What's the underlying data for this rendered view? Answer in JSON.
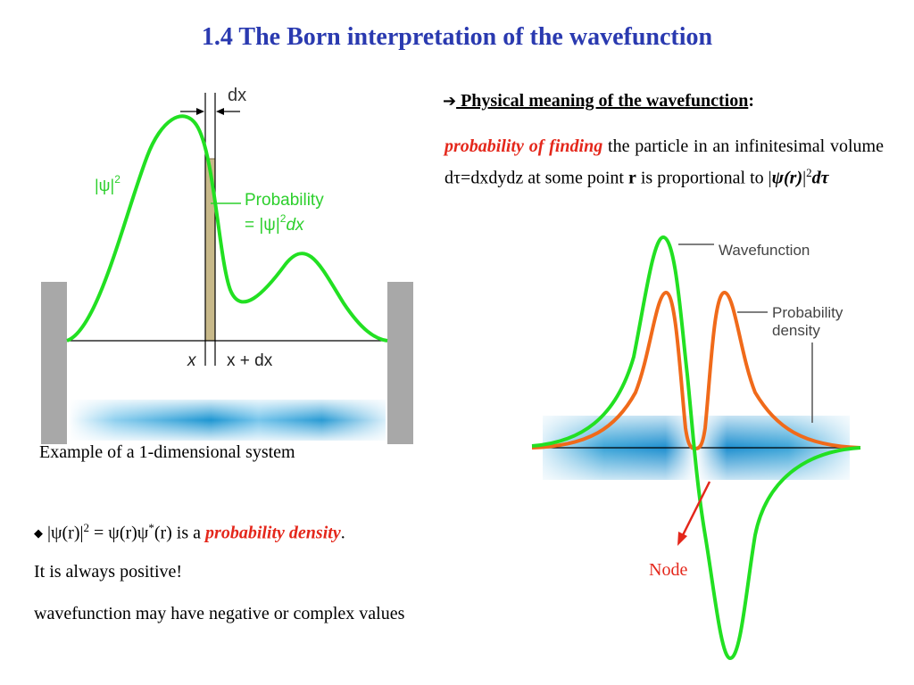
{
  "slide": {
    "title": "1.4 The Born interpretation of the wavefunction",
    "heading": {
      "arrow": "➔",
      "text": " Physical meaning of the wavefunction",
      "colon": ":"
    },
    "paragraph": {
      "emph": "probability of finding",
      "part1": " the particle in an infinitesimal volume dτ=dxdydz at some point ",
      "r": "r",
      "part2": " is proportional to |",
      "formula": "ψ(r)",
      "bar": "|",
      "sup": "2",
      "dtau": "dτ"
    },
    "caption": "Example of a 1-dimensional system",
    "bullet": {
      "marker": "◆",
      "pre": " |ψ(r)|",
      "sup2": "2",
      "mid": " = ψ(r)ψ",
      "star": "*",
      "post": "(r) is a ",
      "emph": "probability density",
      "end": "."
    },
    "line2": "It is always positive!",
    "line3": "wavefunction may have negative or complex values"
  },
  "diagram_left": {
    "dx_label": "dx",
    "psi_sq_label": "|ψ|",
    "psi_sq_sup": "2",
    "prob_label_1": "Probability",
    "prob_label_2a": "=  |ψ|",
    "prob_label_2sup": "2",
    "prob_label_2b": "dx",
    "x_label": "x",
    "xdx_label": "x + dx"
  },
  "diagram_right": {
    "wavefunction_label": "Wavefunction",
    "prob_density_label_1": "Probability",
    "prob_density_label_2": "density",
    "node_label": "Node"
  },
  "colors": {
    "title": "#2a3ab0",
    "green_curve": "#22e022",
    "orange_curve": "#f06a1a",
    "red_text": "#e4271b",
    "wall": "#a8a8a8",
    "blue_band": "#1e96d2"
  }
}
